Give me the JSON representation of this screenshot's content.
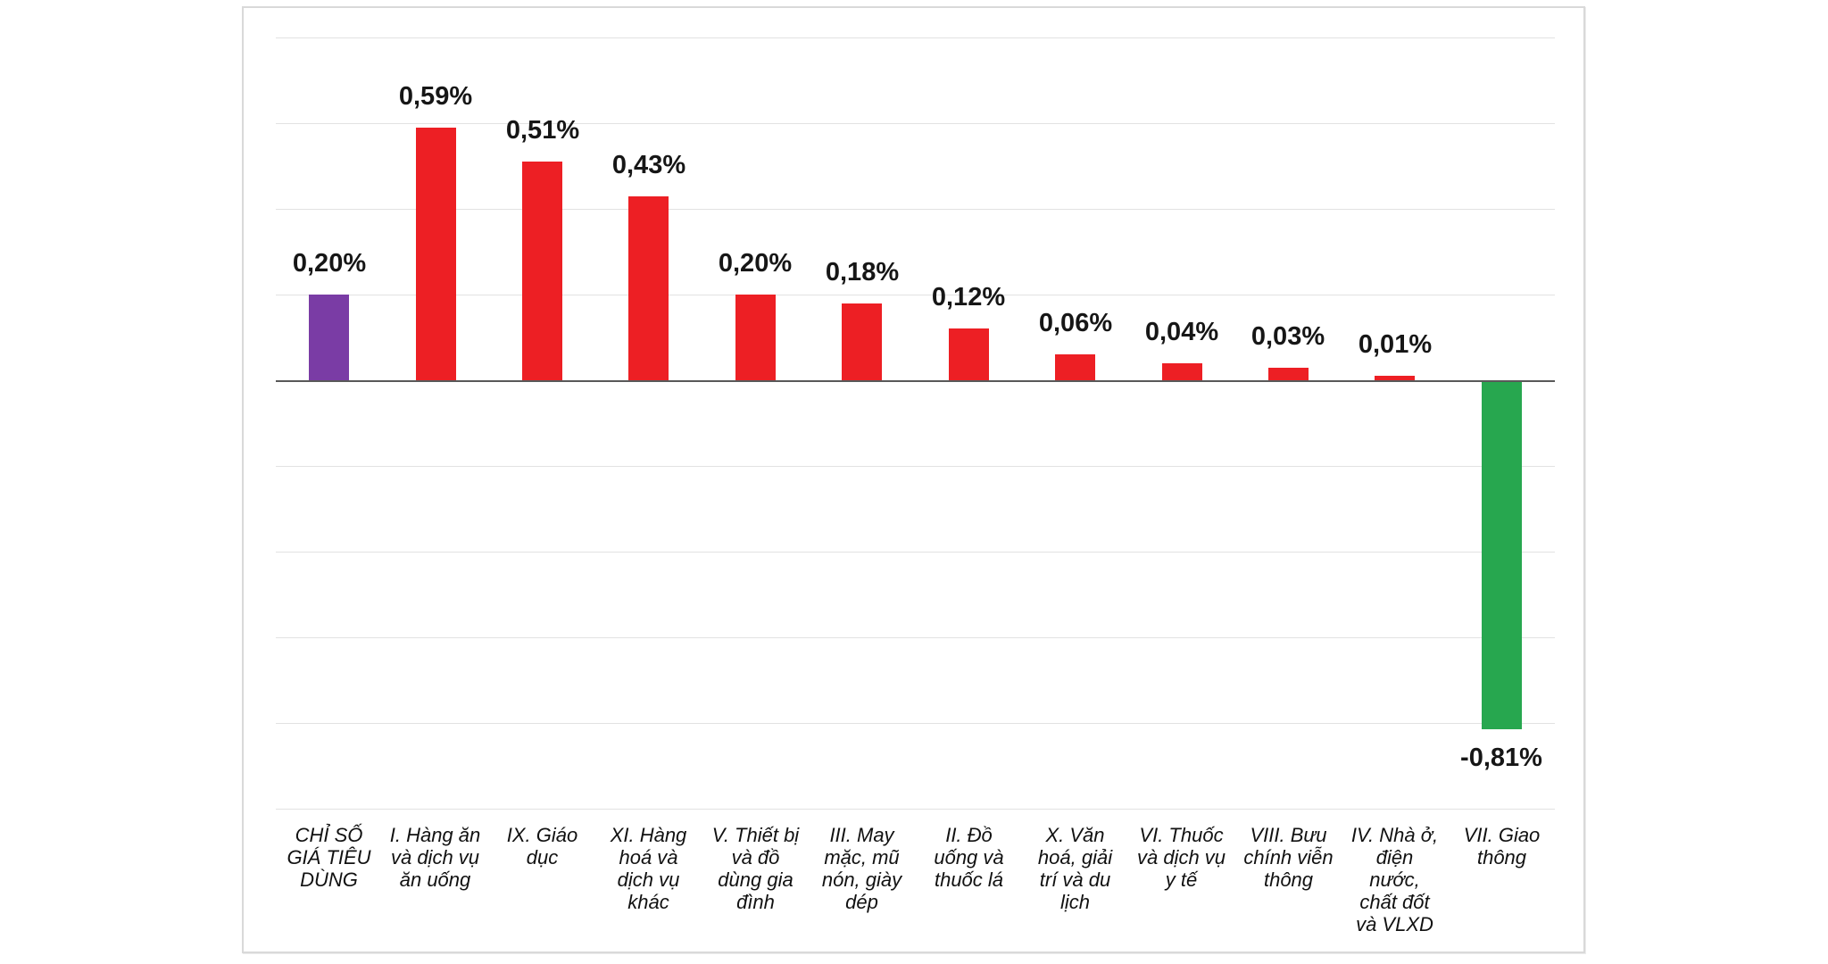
{
  "chart": {
    "title": "",
    "legend": "none",
    "background": "#ffffff",
    "frame_border_color": "#d9d9d9",
    "gridline_color": "#e2e2e2",
    "zero_axis_color": "#595959",
    "value_label_color": "#161616",
    "category_label_color": "#111111"
  },
  "chart_data": {
    "type": "bar",
    "title": "",
    "xlabel": "",
    "ylabel": "",
    "ylim": [
      -1.0,
      0.8
    ],
    "gridline_step": 0.2,
    "grid": true,
    "y_axis_tick_labels": "none",
    "legend_position": "none",
    "categories": [
      "CHỈ SỐ GIÁ TIÊU DÙNG",
      "I. Hàng ăn và dịch vụ ăn uống",
      "IX. Giáo dục",
      "XI. Hàng hoá và dịch vụ khác",
      "V. Thiết bị và đồ dùng gia đình",
      "III. May mặc, mũ nón, giày dép",
      "II. Đồ uống và thuốc lá",
      "X. Văn hoá, giải trí và du lịch",
      "VI. Thuốc và dịch vụ y tế",
      "VIII. Bưu chính viễn thông",
      "IV. Nhà ở, điện nước, chất đốt và VLXD",
      "VII. Giao thông"
    ],
    "category_label_lines": [
      "CHỈ SỐ\nGIÁ TIÊU\nDÙNG",
      "I. Hàng ăn\nvà dịch vụ\năn uống",
      "IX. Giáo\ndục",
      "XI. Hàng\nhoá và\ndịch vụ\nkhác",
      "V. Thiết bị\nvà đồ\ndùng gia\nđình",
      "III. May\nmặc, mũ\nnón, giày\ndép",
      "II. Đồ\nuống và\nthuốc lá",
      "X. Văn\nhoá, giải\ntrí và du\nlịch",
      "VI. Thuốc\nvà dịch vụ\ny tế",
      "VIII. Bưu\nchính viễn\nthông",
      "IV. Nhà ở,\nđiện\nnước,\nchất đốt\nvà VLXD",
      "VII. Giao\nthông"
    ],
    "values": [
      0.2,
      0.59,
      0.51,
      0.43,
      0.2,
      0.18,
      0.12,
      0.06,
      0.04,
      0.03,
      0.01,
      -0.81
    ],
    "data_labels": [
      "0,20%",
      "0,59%",
      "0,51%",
      "0,43%",
      "0,20%",
      "0,18%",
      "0,12%",
      "0,06%",
      "0,04%",
      "0,03%",
      "0,01%",
      "-0,81%"
    ],
    "bar_colors": [
      "#7A3CA5",
      "#ED1F24",
      "#ED1F24",
      "#ED1F24",
      "#ED1F24",
      "#ED1F24",
      "#ED1F24",
      "#ED1F24",
      "#ED1F24",
      "#ED1F24",
      "#ED1F24",
      "#27A74F"
    ]
  }
}
